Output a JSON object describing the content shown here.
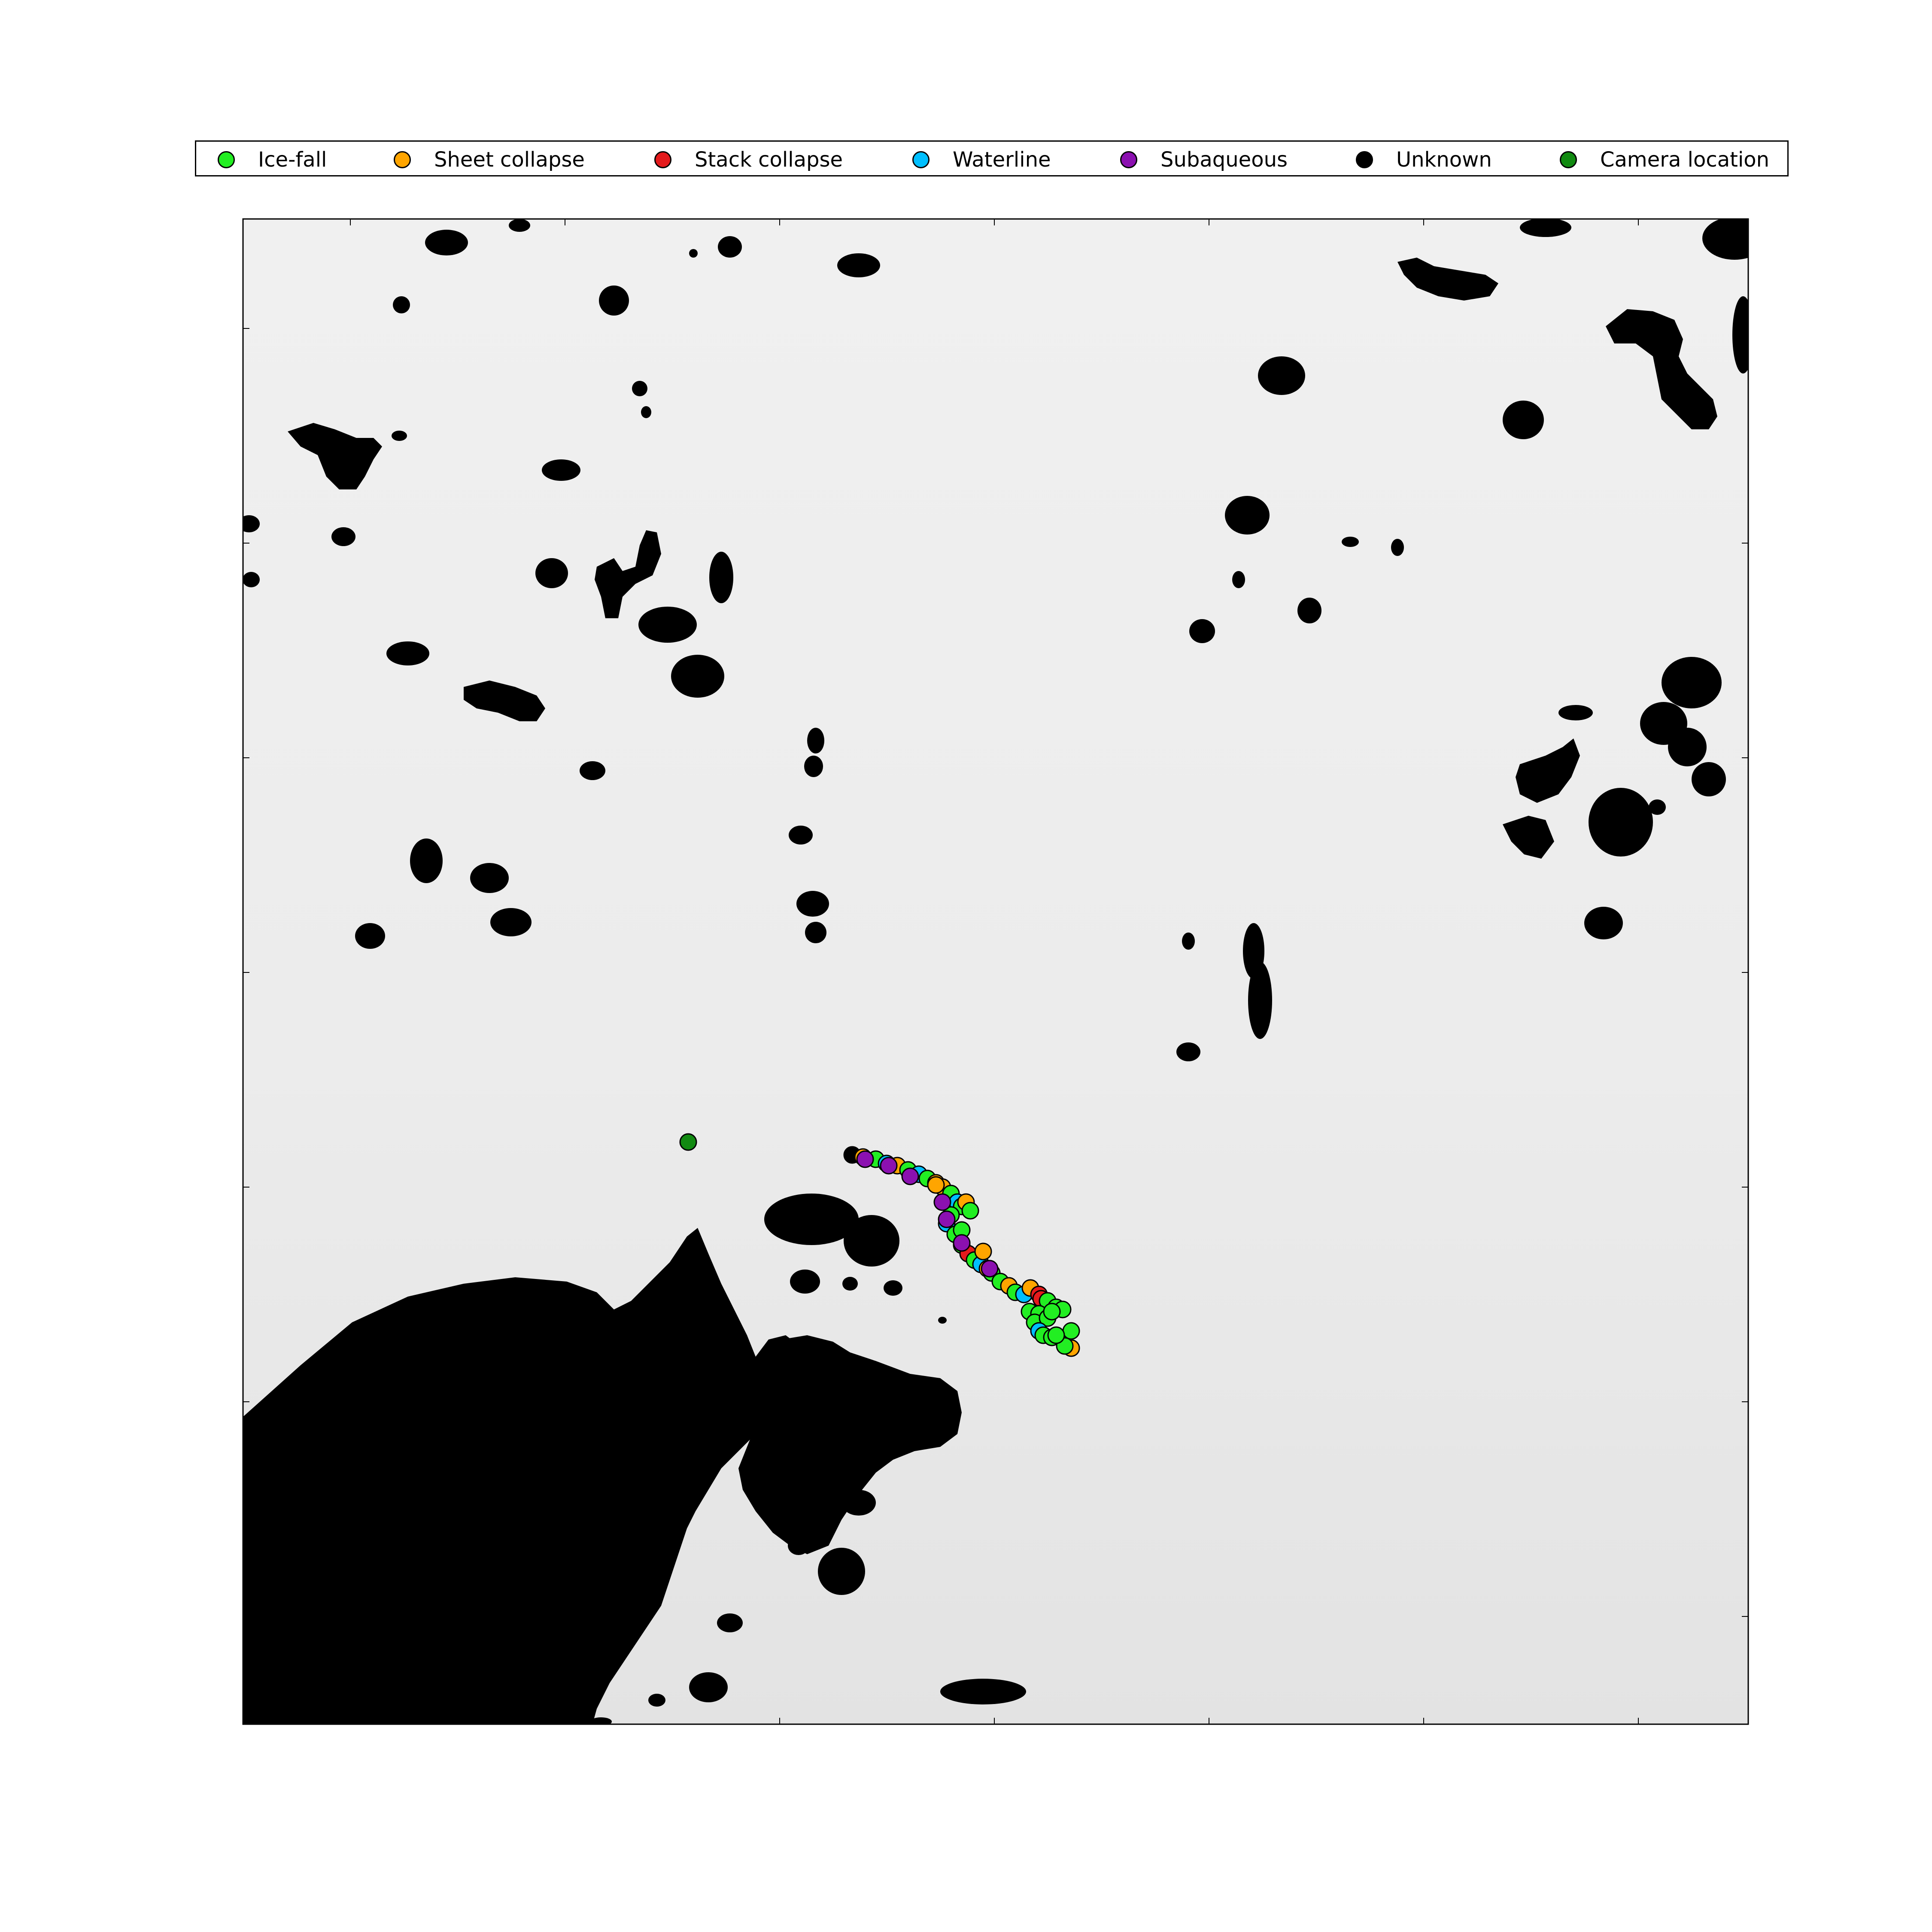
{
  "legend": {
    "items": [
      {
        "label": "Ice-fall",
        "color": "#22ee22"
      },
      {
        "label": "Sheet collapse",
        "color": "#ffa500"
      },
      {
        "label": "Stack collapse",
        "color": "#e41a1c"
      },
      {
        "label": "Waterline",
        "color": "#00bfff"
      },
      {
        "label": "Subaqueous",
        "color": "#8b10b0"
      },
      {
        "label": "Unknown",
        "color": "#000000"
      },
      {
        "label": "Camera location",
        "color": "#118a11"
      }
    ]
  },
  "map": {
    "background": "#ebebeb",
    "land_color": "#000000",
    "axes_ticks_visible": true,
    "tick_labels_visible": false
  }
}
